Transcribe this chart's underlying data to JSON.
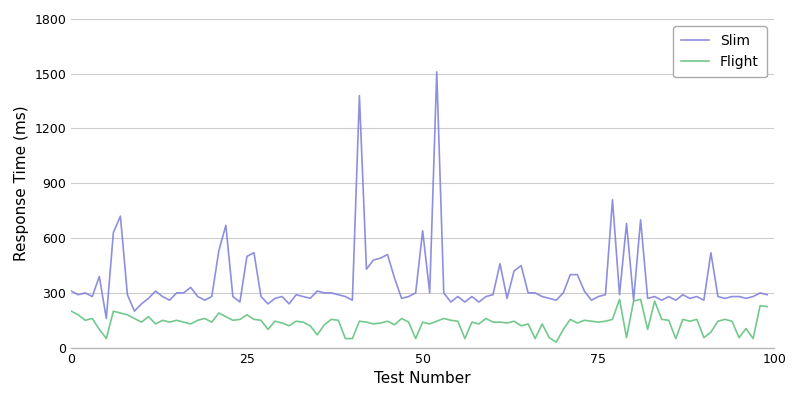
{
  "xlabel": "Test Number",
  "ylabel": "Response Time (ms)",
  "xlim": [
    0,
    100
  ],
  "ylim": [
    0,
    1800
  ],
  "yticks": [
    0,
    300,
    600,
    900,
    1200,
    1500,
    1800
  ],
  "xticks": [
    0,
    25,
    50,
    75,
    100
  ],
  "slim_color": "#7b7bdb",
  "flight_color": "#5bbf7a",
  "plot_bg_color": "#ffffff",
  "fig_bg_color": "#ffffff",
  "grid_color": "#cccccc",
  "slim_data": [
    310,
    290,
    300,
    280,
    390,
    160,
    630,
    720,
    290,
    200,
    240,
    270,
    310,
    280,
    260,
    300,
    300,
    330,
    280,
    260,
    280,
    530,
    670,
    280,
    250,
    500,
    520,
    280,
    240,
    270,
    280,
    240,
    290,
    280,
    270,
    310,
    300,
    300,
    290,
    280,
    260,
    1380,
    430,
    480,
    490,
    510,
    380,
    270,
    280,
    300,
    640,
    300,
    1510,
    300,
    250,
    280,
    250,
    280,
    250,
    280,
    290,
    460,
    270,
    420,
    450,
    300,
    300,
    280,
    270,
    260,
    300,
    400,
    400,
    310,
    260,
    280,
    290,
    810,
    290,
    680,
    260,
    700,
    270,
    280,
    260,
    280,
    260,
    290,
    270,
    280,
    260,
    520,
    280,
    270,
    280,
    280,
    270,
    280,
    300,
    290
  ],
  "flight_data": [
    200,
    180,
    150,
    160,
    100,
    50,
    200,
    190,
    180,
    160,
    140,
    170,
    130,
    150,
    140,
    150,
    140,
    130,
    150,
    160,
    140,
    190,
    170,
    150,
    155,
    180,
    155,
    150,
    100,
    145,
    135,
    120,
    145,
    140,
    120,
    70,
    125,
    155,
    150,
    50,
    50,
    145,
    140,
    130,
    135,
    145,
    125,
    160,
    140,
    50,
    140,
    130,
    145,
    160,
    150,
    145,
    50,
    140,
    130,
    160,
    140,
    140,
    135,
    145,
    120,
    130,
    50,
    130,
    55,
    30,
    100,
    155,
    135,
    150,
    145,
    140,
    145,
    155,
    265,
    55,
    255,
    265,
    100,
    255,
    155,
    150,
    50,
    155,
    145,
    155,
    55,
    85,
    145,
    155,
    145,
    55,
    105,
    50,
    230,
    225
  ],
  "figsize": [
    8.0,
    4.0
  ],
  "dpi": 100,
  "line_width": 1.2,
  "legend_loc": "upper right",
  "legend_fontsize": 10,
  "xlabel_fontsize": 11,
  "ylabel_fontsize": 11,
  "tick_fontsize": 9
}
